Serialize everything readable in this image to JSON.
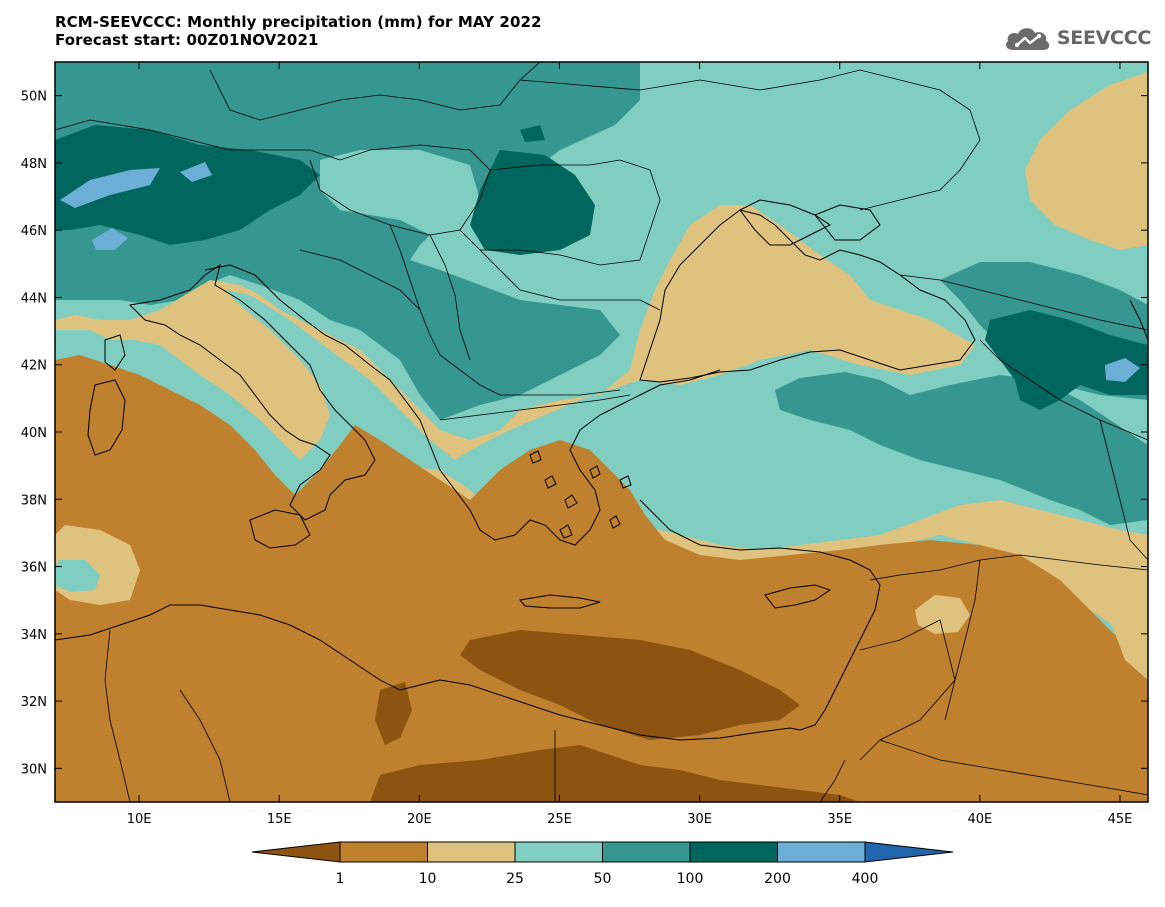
{
  "header": {
    "title_line1": "RCM-SEEVCCC: Monthly precipitation (mm) for MAY 2022",
    "title_line2": "Forecast start: 00Z01NOV2021"
  },
  "logo": {
    "text": "SEEVCCC",
    "icon": "cloud-icon",
    "color": "#666666"
  },
  "map": {
    "type": "filled-contour-map",
    "region": "South-east Europe, Eastern Mediterranean and Black Sea",
    "lon_range": [
      7,
      46
    ],
    "lat_range": [
      29,
      51
    ],
    "x_ticks": [
      {
        "value": 10,
        "label": "10E"
      },
      {
        "value": 15,
        "label": "15E"
      },
      {
        "value": 20,
        "label": "20E"
      },
      {
        "value": 25,
        "label": "25E"
      },
      {
        "value": 30,
        "label": "30E"
      },
      {
        "value": 35,
        "label": "35E"
      },
      {
        "value": 40,
        "label": "40E"
      },
      {
        "value": 45,
        "label": "45E"
      }
    ],
    "y_ticks": [
      {
        "value": 50,
        "label": "50N"
      },
      {
        "value": 48,
        "label": "48N"
      },
      {
        "value": 46,
        "label": "46N"
      },
      {
        "value": 44,
        "label": "44N"
      },
      {
        "value": 42,
        "label": "42N"
      },
      {
        "value": 40,
        "label": "40N"
      },
      {
        "value": 38,
        "label": "38N"
      },
      {
        "value": 36,
        "label": "36N"
      },
      {
        "value": 34,
        "label": "34N"
      },
      {
        "value": 32,
        "label": "32N"
      },
      {
        "value": 30,
        "label": "30N"
      }
    ]
  },
  "legend": {
    "classes": [
      {
        "range": "<1",
        "color": "#8c5410"
      },
      {
        "range": "1-10",
        "color": "#bf812d"
      },
      {
        "range": "10-25",
        "color": "#dfc27d"
      },
      {
        "range": "25-50",
        "color": "#80cdc1"
      },
      {
        "range": "50-100",
        "color": "#35978f"
      },
      {
        "range": "100-200",
        "color": "#01665e"
      },
      {
        "range": "200-400",
        "color": "#6baed6"
      },
      {
        "range": ">400",
        "color": "#2166ac"
      }
    ],
    "labels": [
      "1",
      "10",
      "25",
      "50",
      "100",
      "200",
      "400"
    ]
  }
}
